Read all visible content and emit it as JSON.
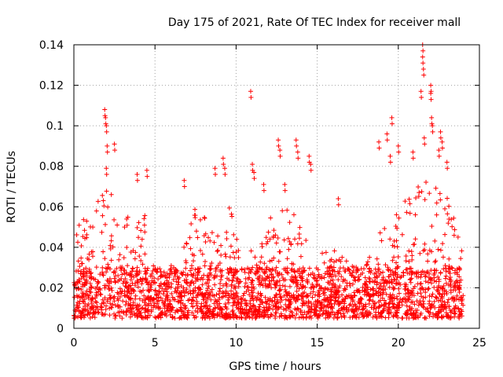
{
  "chart_data": {
    "type": "scatter",
    "title": "Day 175 of 2021, Rate Of TEC Index for receiver mall",
    "xlabel": "GPS time / hours",
    "ylabel": "ROTI / TECUs",
    "xlim": [
      0,
      25
    ],
    "ylim": [
      0,
      0.14
    ],
    "xticks": [
      "0",
      "5",
      "10",
      "15",
      "20",
      "25"
    ],
    "yticks": [
      "0",
      "0.02",
      "0.04",
      "0.06",
      "0.08",
      "0.1",
      "0.12",
      "0.14"
    ],
    "xtick_values": [
      0,
      5,
      10,
      15,
      20,
      25
    ],
    "ytick_values": [
      0,
      0.02,
      0.04,
      0.06,
      0.08,
      0.1,
      0.12,
      0.14
    ],
    "grid": true,
    "marker": "+",
    "color": "#ff0000",
    "baseline_range": [
      0.005,
      0.03
    ],
    "x_span": [
      0,
      24
    ],
    "envelope": [
      {
        "x": 0.0,
        "y": 0.045
      },
      {
        "x": 0.5,
        "y": 0.06
      },
      {
        "x": 1.0,
        "y": 0.05
      },
      {
        "x": 1.5,
        "y": 0.065
      },
      {
        "x": 2.0,
        "y": 0.07
      },
      {
        "x": 2.5,
        "y": 0.065
      },
      {
        "x": 3.0,
        "y": 0.06
      },
      {
        "x": 3.5,
        "y": 0.055
      },
      {
        "x": 4.0,
        "y": 0.065
      },
      {
        "x": 4.5,
        "y": 0.055
      },
      {
        "x": 5.0,
        "y": 0.03
      },
      {
        "x": 5.5,
        "y": 0.028
      },
      {
        "x": 6.0,
        "y": 0.03
      },
      {
        "x": 6.5,
        "y": 0.032
      },
      {
        "x": 7.0,
        "y": 0.05
      },
      {
        "x": 7.5,
        "y": 0.06
      },
      {
        "x": 8.0,
        "y": 0.055
      },
      {
        "x": 8.5,
        "y": 0.06
      },
      {
        "x": 9.0,
        "y": 0.06
      },
      {
        "x": 9.5,
        "y": 0.065
      },
      {
        "x": 10.0,
        "y": 0.045
      },
      {
        "x": 10.5,
        "y": 0.035
      },
      {
        "x": 11.0,
        "y": 0.04
      },
      {
        "x": 11.5,
        "y": 0.045
      },
      {
        "x": 12.0,
        "y": 0.055
      },
      {
        "x": 12.5,
        "y": 0.06
      },
      {
        "x": 13.0,
        "y": 0.06
      },
      {
        "x": 13.5,
        "y": 0.06
      },
      {
        "x": 14.0,
        "y": 0.06
      },
      {
        "x": 14.5,
        "y": 0.045
      },
      {
        "x": 15.0,
        "y": 0.035
      },
      {
        "x": 15.5,
        "y": 0.04
      },
      {
        "x": 16.0,
        "y": 0.04
      },
      {
        "x": 16.5,
        "y": 0.04
      },
      {
        "x": 17.0,
        "y": 0.035
      },
      {
        "x": 17.5,
        "y": 0.03
      },
      {
        "x": 18.0,
        "y": 0.035
      },
      {
        "x": 18.5,
        "y": 0.045
      },
      {
        "x": 19.0,
        "y": 0.05
      },
      {
        "x": 19.5,
        "y": 0.055
      },
      {
        "x": 20.0,
        "y": 0.06
      },
      {
        "x": 20.5,
        "y": 0.065
      },
      {
        "x": 21.0,
        "y": 0.07
      },
      {
        "x": 21.5,
        "y": 0.075
      },
      {
        "x": 22.0,
        "y": 0.075
      },
      {
        "x": 22.5,
        "y": 0.07
      },
      {
        "x": 23.0,
        "y": 0.065
      },
      {
        "x": 23.5,
        "y": 0.055
      },
      {
        "x": 24.0,
        "y": 0.045
      }
    ],
    "spikes": [
      {
        "x": 1.9,
        "y": 0.108
      },
      {
        "x": 2.0,
        "y": 0.1
      },
      {
        "x": 1.95,
        "y": 0.104
      },
      {
        "x": 2.05,
        "y": 0.09
      },
      {
        "x": 2.5,
        "y": 0.091
      },
      {
        "x": 2.0,
        "y": 0.079
      },
      {
        "x": 3.9,
        "y": 0.076
      },
      {
        "x": 4.5,
        "y": 0.078
      },
      {
        "x": 6.8,
        "y": 0.073
      },
      {
        "x": 8.7,
        "y": 0.079
      },
      {
        "x": 9.2,
        "y": 0.084
      },
      {
        "x": 9.3,
        "y": 0.079
      },
      {
        "x": 10.9,
        "y": 0.117
      },
      {
        "x": 11.0,
        "y": 0.081
      },
      {
        "x": 11.1,
        "y": 0.077
      },
      {
        "x": 11.7,
        "y": 0.071
      },
      {
        "x": 12.6,
        "y": 0.093
      },
      {
        "x": 12.7,
        "y": 0.088
      },
      {
        "x": 13.7,
        "y": 0.093
      },
      {
        "x": 13.8,
        "y": 0.087
      },
      {
        "x": 14.5,
        "y": 0.085
      },
      {
        "x": 14.6,
        "y": 0.081
      },
      {
        "x": 18.8,
        "y": 0.092
      },
      {
        "x": 19.3,
        "y": 0.096
      },
      {
        "x": 19.5,
        "y": 0.085
      },
      {
        "x": 19.6,
        "y": 0.104
      },
      {
        "x": 20.0,
        "y": 0.09
      },
      {
        "x": 20.9,
        "y": 0.087
      },
      {
        "x": 21.4,
        "y": 0.117
      },
      {
        "x": 21.5,
        "y": 0.14
      },
      {
        "x": 21.5,
        "y": 0.134
      },
      {
        "x": 21.55,
        "y": 0.128
      },
      {
        "x": 21.6,
        "y": 0.094
      },
      {
        "x": 22.0,
        "y": 0.12
      },
      {
        "x": 22.0,
        "y": 0.116
      },
      {
        "x": 22.05,
        "y": 0.104
      },
      {
        "x": 22.1,
        "y": 0.1
      },
      {
        "x": 22.6,
        "y": 0.097
      },
      {
        "x": 22.7,
        "y": 0.092
      },
      {
        "x": 23.0,
        "y": 0.082
      },
      {
        "x": 22.5,
        "y": 0.088
      },
      {
        "x": 13.0,
        "y": 0.071
      },
      {
        "x": 6.0,
        "y": 0.031
      },
      {
        "x": 16.3,
        "y": 0.064
      }
    ]
  }
}
